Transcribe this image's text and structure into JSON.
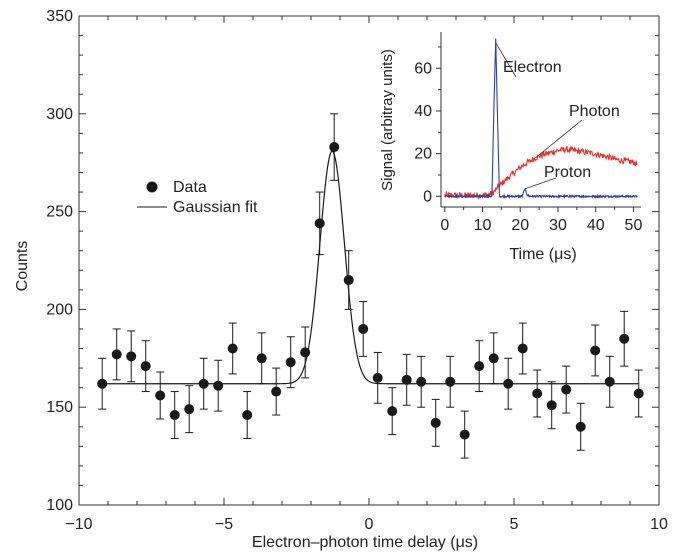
{
  "chart_data": [
    {
      "id": "main",
      "type": "scatter",
      "xlabel": "Electron–photon time delay (μs)",
      "ylabel": "Counts",
      "xlim": [
        -10,
        10
      ],
      "ylim": [
        100,
        350
      ],
      "xticks": [
        -10,
        -5,
        0,
        5,
        10
      ],
      "yticks": [
        100,
        150,
        200,
        250,
        300,
        350
      ],
      "xtick_labels": [
        "−10",
        "−5",
        "0",
        "5",
        "10"
      ],
      "ytick_labels": [
        "100",
        "150",
        "200",
        "250",
        "300",
        "350"
      ],
      "legend": {
        "placement": "upper-left",
        "entries": [
          {
            "label": "Data",
            "marker": "filled-circle"
          },
          {
            "label": "Gaussian fit",
            "marker": "line"
          }
        ]
      },
      "series": [
        {
          "name": "Data",
          "style": "points-with-error-bars",
          "color": "#1a1a1a",
          "x": [
            -9.2,
            -8.7,
            -8.2,
            -7.7,
            -7.2,
            -6.7,
            -6.2,
            -5.7,
            -5.2,
            -4.7,
            -4.2,
            -3.7,
            -3.2,
            -2.7,
            -2.2,
            -1.7,
            -1.2,
            -0.7,
            -0.2,
            0.3,
            0.8,
            1.3,
            1.8,
            2.3,
            2.8,
            3.3,
            3.8,
            4.3,
            4.8,
            5.3,
            5.8,
            6.3,
            6.8,
            7.3,
            7.8,
            8.3,
            8.8,
            9.3
          ],
          "y": [
            162,
            177,
            176,
            171,
            156,
            146,
            149,
            162,
            161,
            180,
            146,
            175,
            158,
            173,
            178,
            244,
            283,
            215,
            190,
            165,
            148,
            164,
            163,
            142,
            163,
            136,
            171,
            175,
            162,
            180,
            157,
            151,
            159,
            140,
            179,
            163,
            185,
            157
          ],
          "error": [
            13,
            13,
            13,
            13,
            12,
            12,
            12,
            13,
            13,
            13,
            12,
            13,
            12,
            13,
            13,
            16,
            17,
            15,
            14,
            13,
            12,
            13,
            13,
            12,
            13,
            12,
            13,
            13,
            13,
            13,
            12,
            12,
            12,
            12,
            13,
            13,
            14,
            12
          ]
        },
        {
          "name": "Gaussian fit",
          "style": "line",
          "color": "#1a1a1a",
          "function": "gaussian",
          "baseline": 162,
          "amplitude": 119,
          "center": -1.27,
          "sigma": 0.42,
          "x_range": [
            -9.2,
            9.3
          ]
        }
      ]
    },
    {
      "id": "inset",
      "type": "line",
      "xlabel": "Time (μs)",
      "ylabel": "Signal (arbitray units)",
      "xlim": [
        -1,
        52
      ],
      "ylim": [
        -5,
        77
      ],
      "xticks": [
        0,
        10,
        20,
        30,
        40,
        50
      ],
      "yticks": [
        0,
        20,
        40,
        60
      ],
      "xtick_labels": [
        "0",
        "10",
        "20",
        "30",
        "40",
        "50"
      ],
      "ytick_labels": [
        "0",
        "20",
        "40",
        "60"
      ],
      "series": [
        {
          "name": "Photon",
          "color": "#e8312b",
          "x": [
            0,
            5,
            10,
            12,
            13,
            14,
            16,
            18,
            20,
            22,
            24,
            26,
            28,
            30,
            32,
            34,
            36,
            38,
            40,
            42,
            44,
            46,
            48,
            50,
            51
          ],
          "y": [
            0.5,
            0.5,
            0.5,
            1,
            2,
            4,
            7.5,
            10.5,
            13.5,
            16,
            18,
            19.5,
            20.5,
            21.5,
            22,
            21.5,
            21,
            20.5,
            20,
            19,
            18,
            17,
            16.5,
            16,
            15
          ],
          "noise": 1.4
        },
        {
          "name": "Electron",
          "color": "#2d3fa0",
          "x": [
            0,
            12.5,
            13,
            13.5,
            14,
            14.5,
            20.5,
            21.2,
            21.9,
            22.6,
            51
          ],
          "y": [
            0,
            0,
            40,
            74,
            35,
            0,
            0,
            3.5,
            0.5,
            0,
            0
          ],
          "noise": 0.4
        }
      ],
      "annotations": [
        {
          "text": "Electron",
          "points_to": [
            13.5,
            72
          ]
        },
        {
          "text": "Photon",
          "points_to": [
            24,
            18
          ]
        },
        {
          "text": "Proton",
          "points_to": [
            21.2,
            3.5
          ]
        }
      ]
    }
  ]
}
